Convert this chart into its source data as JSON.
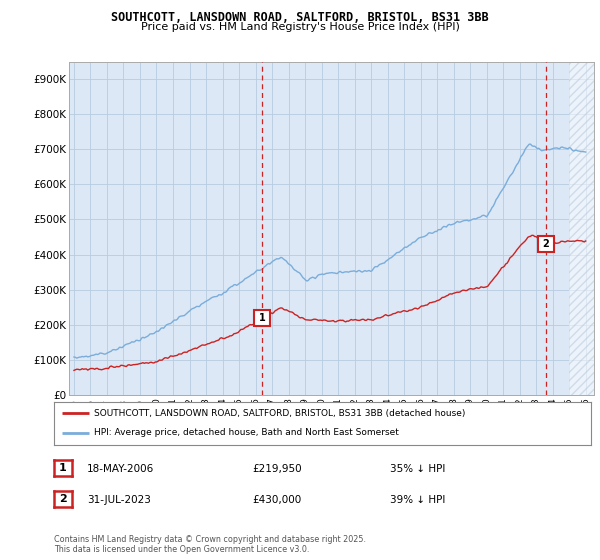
{
  "title": "SOUTHCOTT, LANSDOWN ROAD, SALTFORD, BRISTOL, BS31 3BB",
  "subtitle": "Price paid vs. HM Land Registry's House Price Index (HPI)",
  "ylim": [
    0,
    950000
  ],
  "yticks": [
    0,
    100000,
    200000,
    300000,
    400000,
    500000,
    600000,
    700000,
    800000,
    900000
  ],
  "ytick_labels": [
    "£0",
    "£100K",
    "£200K",
    "£300K",
    "£400K",
    "£500K",
    "£600K",
    "£700K",
    "£800K",
    "£900K"
  ],
  "hpi_color": "#7aaddb",
  "house_color": "#cc2222",
  "sale1_date_num": 2006.38,
  "sale1_price": 219950,
  "sale2_date_num": 2023.58,
  "sale2_price": 430000,
  "legend_house": "SOUTHCOTT, LANSDOWN ROAD, SALTFORD, BRISTOL, BS31 3BB (detached house)",
  "legend_hpi": "HPI: Average price, detached house, Bath and North East Somerset",
  "copyright": "Contains HM Land Registry data © Crown copyright and database right 2025.\nThis data is licensed under the Open Government Licence v3.0.",
  "plot_bg_color": "#dce8f5",
  "hatch_start": 2025.0,
  "xlim_start": 1994.7,
  "xlim_end": 2026.5
}
